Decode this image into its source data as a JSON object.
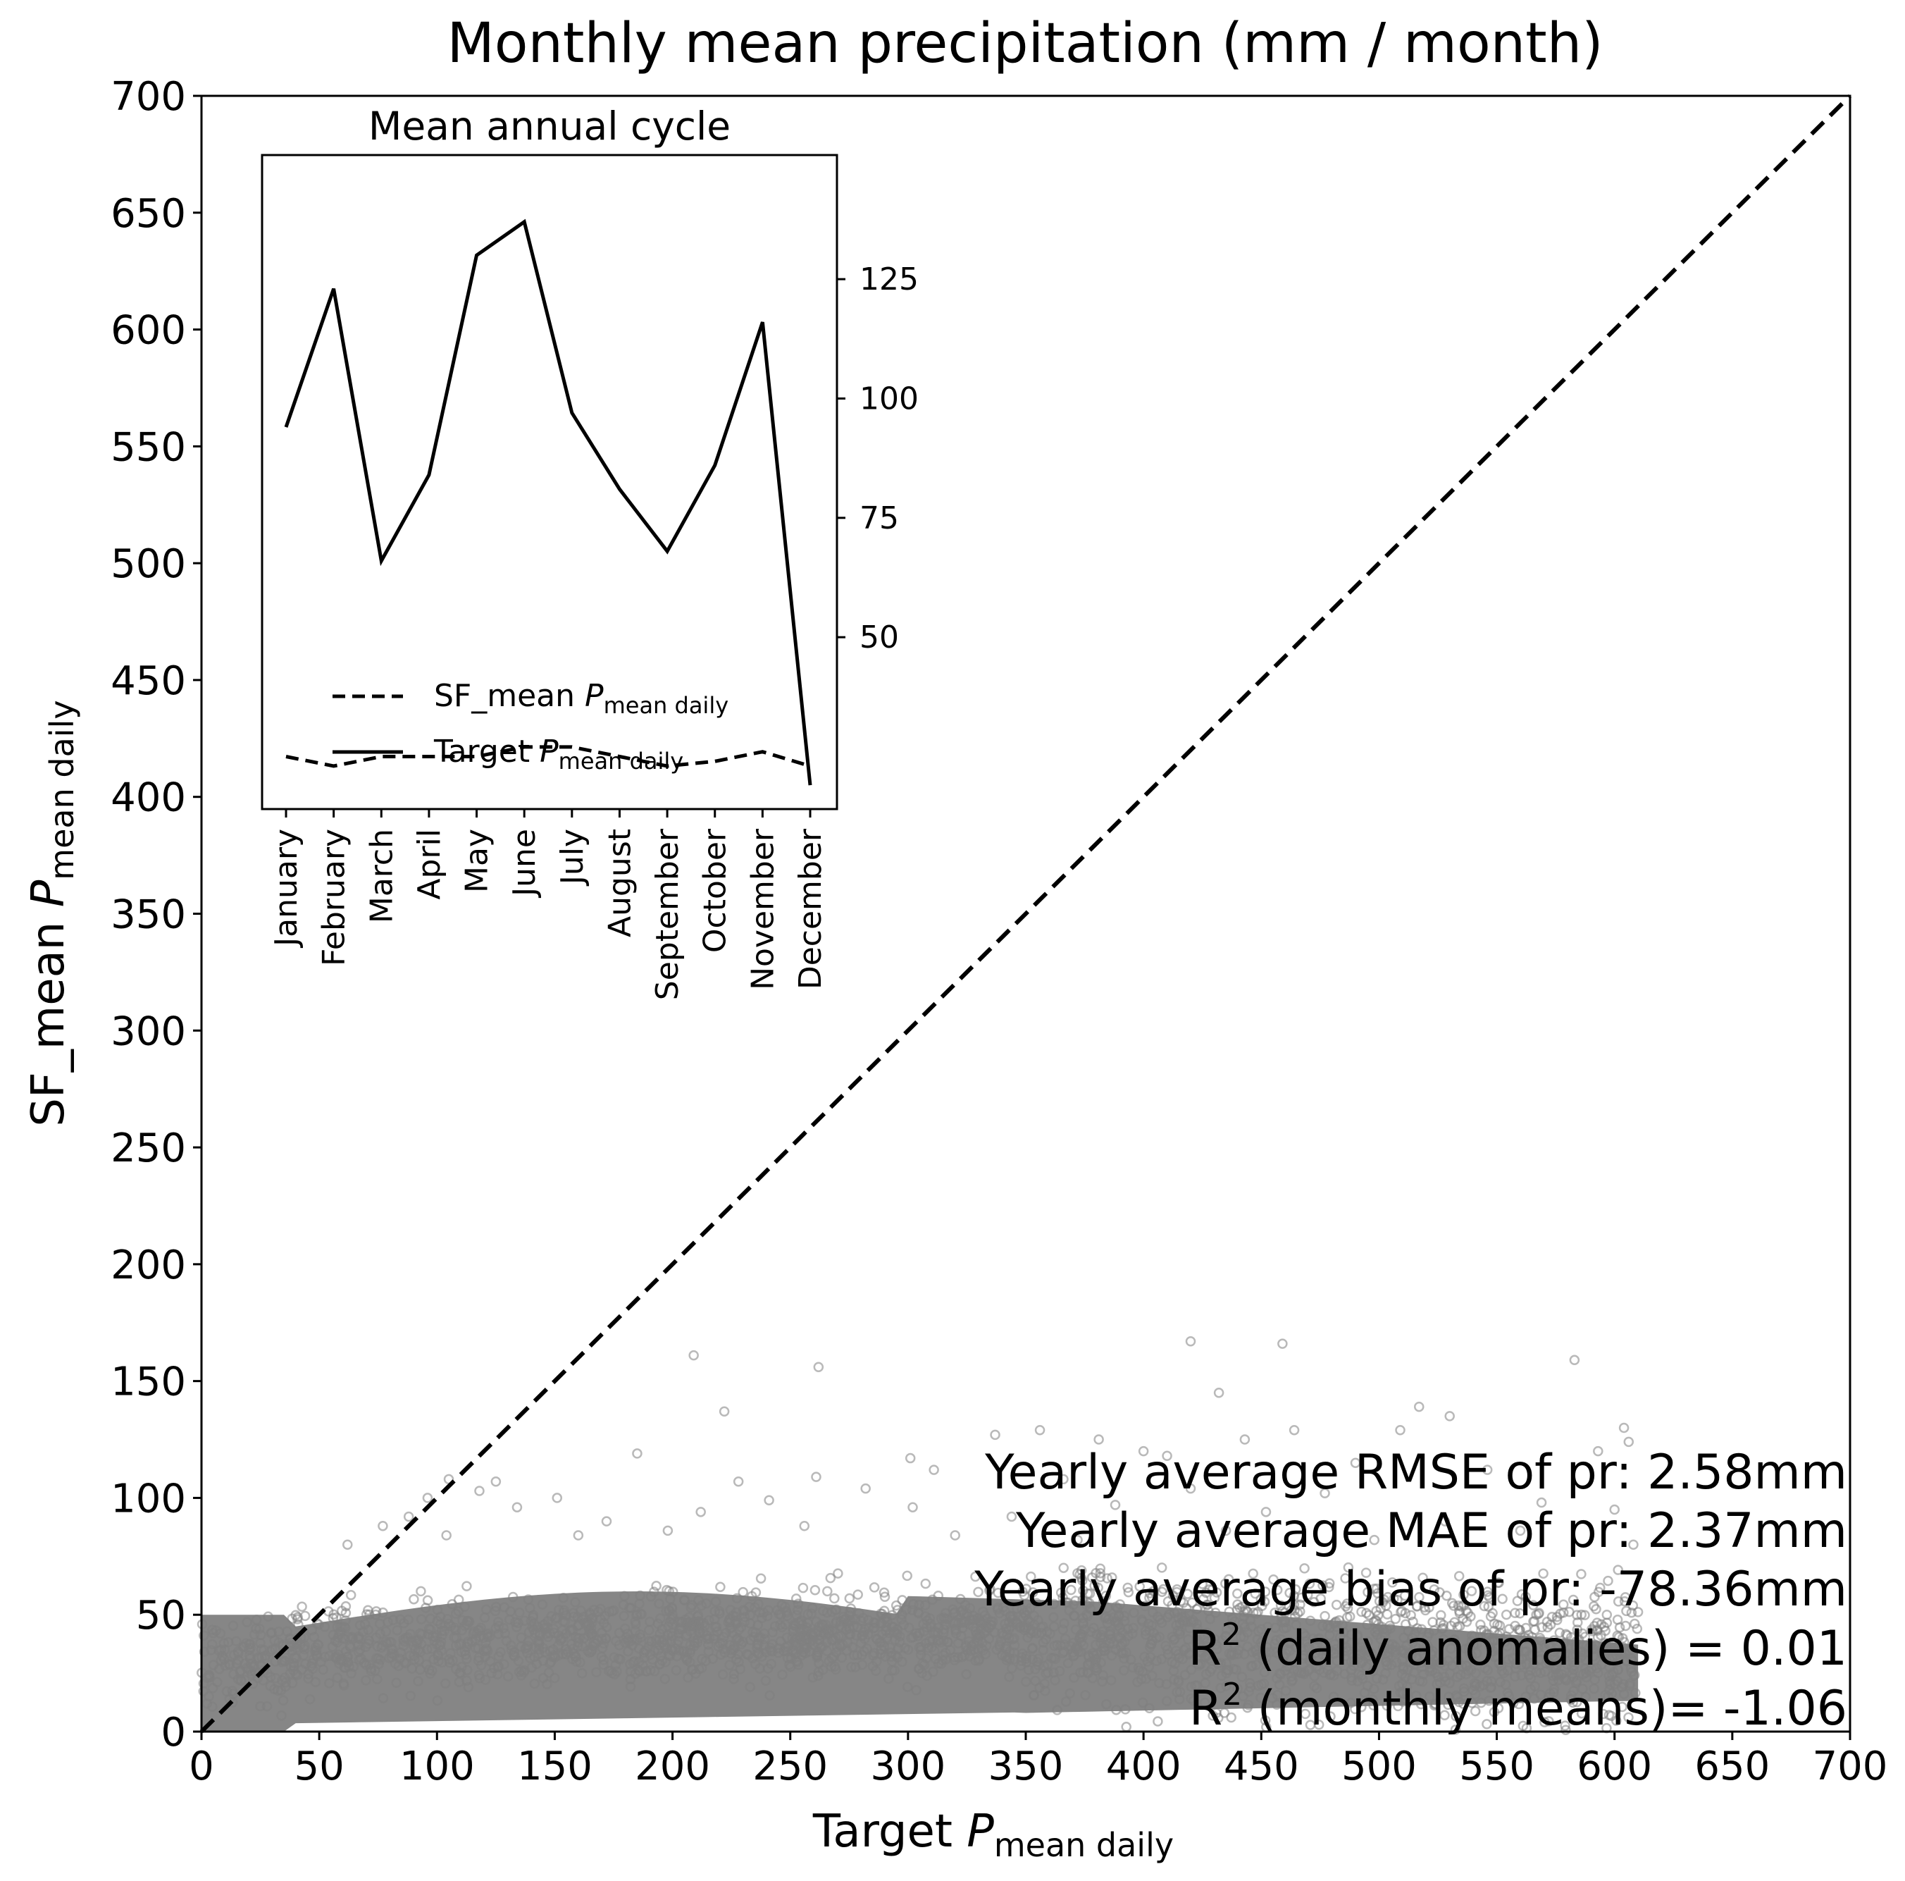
{
  "chart_data": [
    {
      "type": "scatter",
      "title": "Monthly mean precipitation (mm / month)",
      "xlabel": {
        "main": "Target ",
        "italic": "P",
        "sub": "mean daily"
      },
      "ylabel": {
        "main": "SF_mean ",
        "italic": "P",
        "sub": "mean daily"
      },
      "xlim": [
        0,
        700
      ],
      "ylim": [
        0,
        700
      ],
      "xticks": [
        "0",
        "50",
        "100",
        "150",
        "200",
        "250",
        "300",
        "350",
        "400",
        "450",
        "500",
        "550",
        "600",
        "650",
        "700"
      ],
      "yticks": [
        "0",
        "50",
        "100",
        "150",
        "200",
        "250",
        "300",
        "350",
        "400",
        "450",
        "500",
        "550",
        "600",
        "650",
        "700"
      ],
      "grid": false,
      "reference_line": {
        "style": "dashed",
        "color": "#000000",
        "from": [
          0,
          0
        ],
        "to": [
          700,
          700
        ]
      },
      "points": {
        "marker": "hollow circle",
        "color": "#808080",
        "description_values": "dense cloud; x from 0 to ~610, y mostly 0–65, scattered outliers up to ~170",
        "outliers": [
          [
            209,
            161
          ],
          [
            262,
            156
          ],
          [
            420,
            167
          ],
          [
            459,
            166
          ],
          [
            583,
            159
          ],
          [
            432,
            145
          ],
          [
            222,
            137
          ],
          [
            517,
            139
          ],
          [
            530,
            135
          ],
          [
            464,
            129
          ],
          [
            356,
            129
          ],
          [
            381,
            125
          ],
          [
            443,
            125
          ],
          [
            509,
            129
          ],
          [
            604,
            130
          ],
          [
            606,
            124
          ],
          [
            593,
            120
          ],
          [
            185,
            119
          ],
          [
            301,
            117
          ],
          [
            337,
            127
          ],
          [
            105,
            108
          ],
          [
            125,
            107
          ],
          [
            228,
            107
          ],
          [
            261,
            109
          ],
          [
            311,
            112
          ],
          [
            400,
            120
          ],
          [
            410,
            118
          ],
          [
            490,
            115
          ],
          [
            546,
            112
          ],
          [
            96,
            100
          ],
          [
            118,
            103
          ],
          [
            151,
            100
          ],
          [
            241,
            99
          ],
          [
            282,
            104
          ],
          [
            366,
            108
          ],
          [
            420,
            104
          ],
          [
            477,
            102
          ],
          [
            569,
            98
          ],
          [
            77,
            88
          ],
          [
            88,
            92
          ],
          [
            134,
            96
          ],
          [
            172,
            90
          ],
          [
            212,
            94
          ],
          [
            302,
            96
          ],
          [
            344,
            92
          ],
          [
            388,
            97
          ],
          [
            452,
            94
          ],
          [
            528,
            90
          ],
          [
            600,
            95
          ],
          [
            62,
            80
          ],
          [
            104,
            84
          ],
          [
            160,
            84
          ],
          [
            198,
            86
          ],
          [
            256,
            88
          ],
          [
            320,
            84
          ],
          [
            372,
            82
          ],
          [
            435,
            86
          ],
          [
            498,
            82
          ],
          [
            560,
            86
          ],
          [
            608,
            80
          ]
        ]
      }
    },
    {
      "type": "line",
      "title": "Mean annual cycle",
      "categories": [
        "January",
        "February",
        "March",
        "April",
        "May",
        "June",
        "July",
        "August",
        "September",
        "October",
        "November",
        "December"
      ],
      "yticks": [
        "50",
        "75",
        "100",
        "125"
      ],
      "ylim": [
        14,
        151
      ],
      "yaxis_side": "right",
      "legend_position": "lower-left",
      "series": [
        {
          "name": "SF_mean",
          "italic": "P",
          "sub": "mean daily",
          "style": "dashed",
          "values": [
            25,
            23,
            25,
            25,
            25,
            27,
            27,
            25,
            23,
            24,
            26,
            23
          ]
        },
        {
          "name": "Target",
          "italic": "P",
          "sub": "mean daily",
          "style": "solid",
          "values": [
            94,
            123,
            66,
            84,
            130,
            137,
            97,
            81,
            68,
            86,
            116,
            19
          ]
        }
      ]
    }
  ],
  "stats": [
    {
      "text": "Yearly average RMSE of pr: 2.58mm"
    },
    {
      "text": "Yearly average MAE of pr: 2.37mm"
    },
    {
      "text": "Yearly average bias of pr: -78.36mm"
    },
    {
      "prefix": "R",
      "sup": "2",
      "rest": " (daily anomalies) = 0.01"
    },
    {
      "prefix": "R",
      "sup": "2",
      "rest": " (monthly means)= -1.06"
    }
  ]
}
